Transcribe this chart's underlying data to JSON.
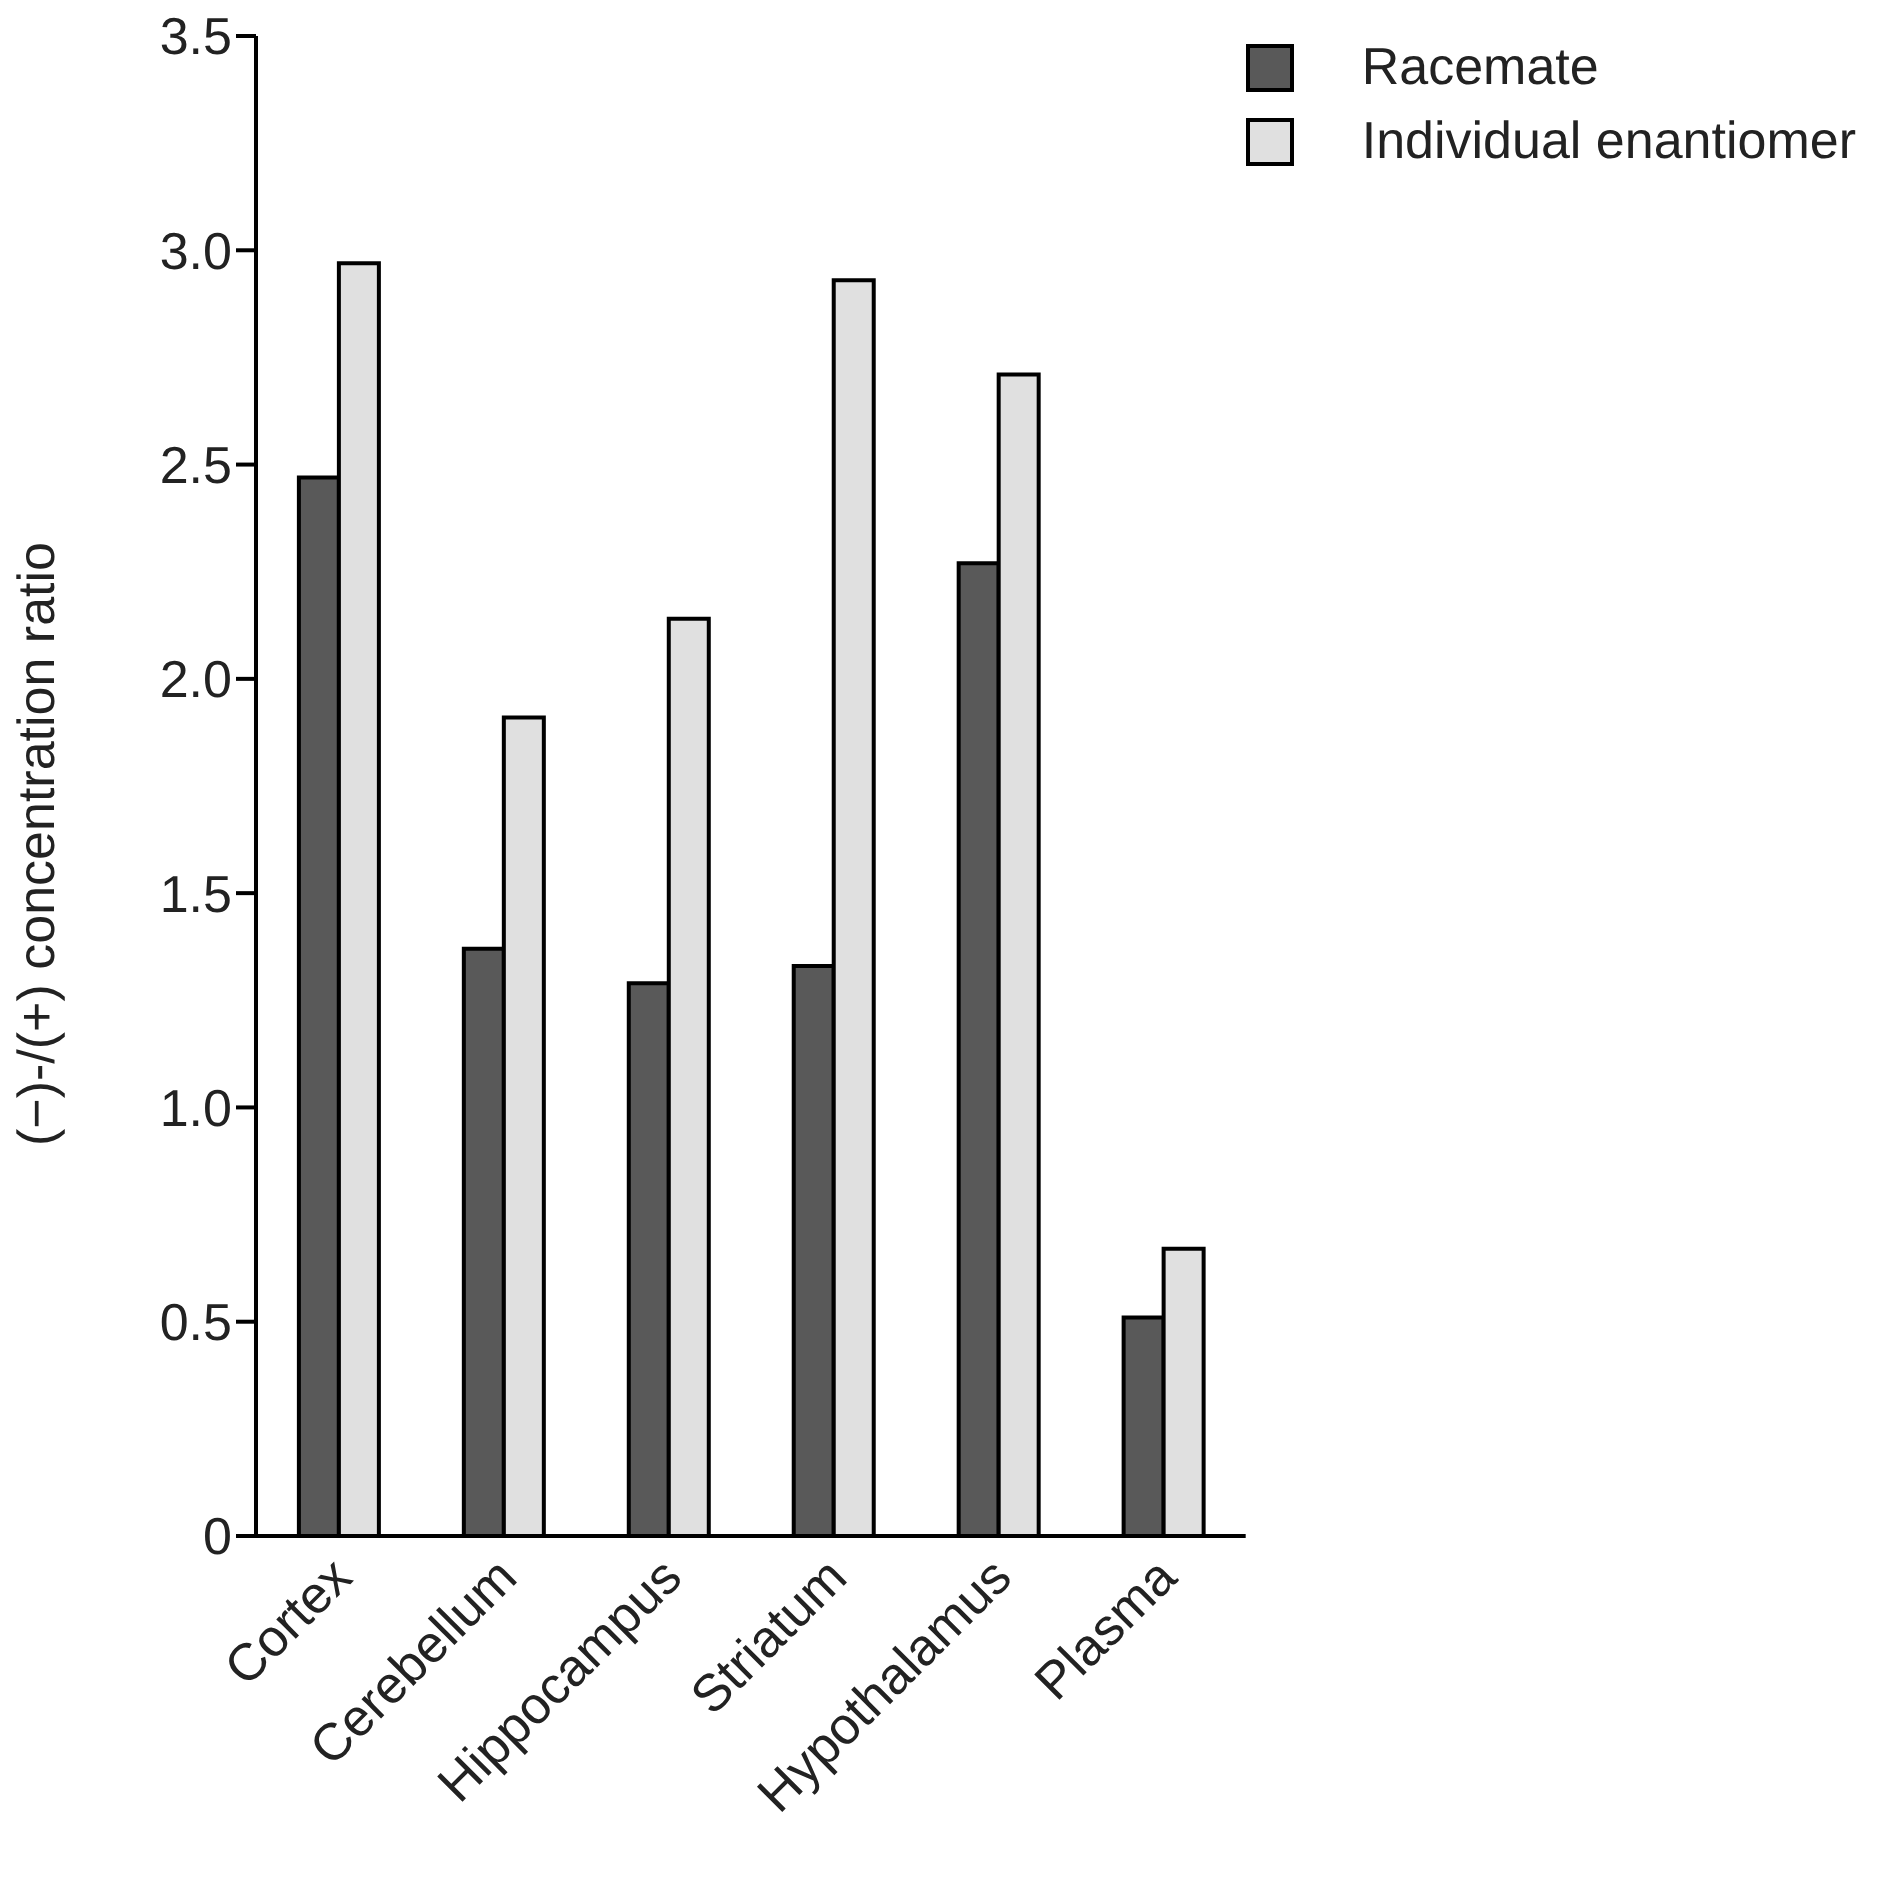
{
  "chart_data": {
    "type": "bar",
    "ylabel": "(−)-/(+) concentration ratio",
    "categories": [
      "Cortex",
      "Cerebellum",
      "Hippocampus",
      "Striatum",
      "Hypothalamus",
      "Plasma"
    ],
    "series": [
      {
        "name": "Racemate",
        "color": "#595959",
        "values": [
          2.47,
          1.37,
          1.29,
          1.33,
          2.27,
          0.51
        ]
      },
      {
        "name": "Individual enantiomer",
        "color": "#e0e0e0",
        "values": [
          2.97,
          1.91,
          2.14,
          2.93,
          2.71,
          0.67
        ]
      }
    ],
    "ylim": [
      0,
      3.5
    ],
    "yticks": [
      0,
      0.5,
      {
        "value": 1,
        "label": "1.0"
      },
      1.5,
      {
        "value": 2,
        "label": "2.0"
      },
      2.5,
      {
        "value": 3,
        "label": "3.0"
      },
      3.5
    ],
    "grid": false,
    "legend": "top right"
  }
}
